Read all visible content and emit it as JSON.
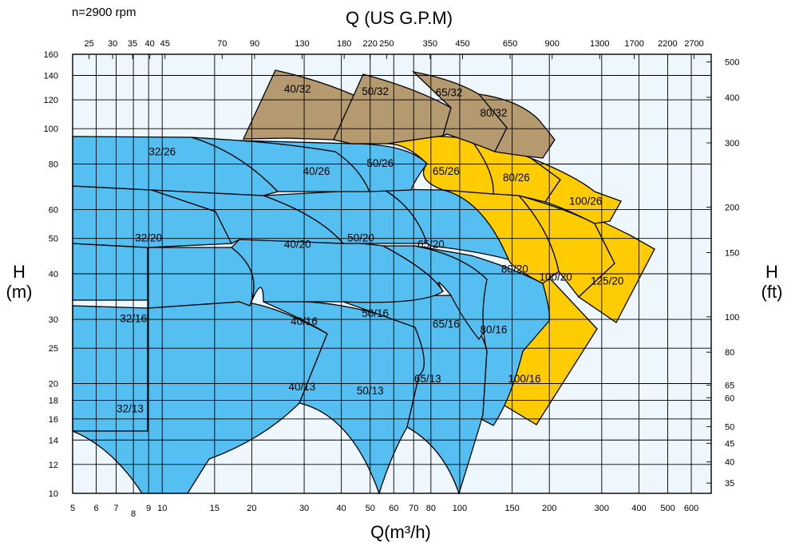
{
  "chart_data": {
    "type": "area",
    "annotation": "n=2900 rpm",
    "xlabel": "Q(m³/h)",
    "x2label": "Q (US G.P.M)",
    "ylabel": "H",
    "ylabel_unit": "(m)",
    "y2label": "H",
    "y2label_unit": "(ft)",
    "x_scale": "log",
    "y_scale": "log",
    "xlim": [
      5,
      700
    ],
    "ylim": [
      10,
      160
    ],
    "x_ticks": [
      "5",
      "6",
      "7",
      "8",
      "9",
      "10",
      "15",
      "20",
      "30",
      "40",
      "50",
      "60",
      "70",
      "80",
      "100",
      "150",
      "200",
      "300",
      "400",
      "500",
      "600"
    ],
    "x_tick_values": [
      5,
      6,
      7,
      8,
      9,
      10,
      15,
      20,
      30,
      40,
      50,
      60,
      70,
      80,
      100,
      150,
      200,
      300,
      400,
      500,
      600
    ],
    "x2_ticks": [
      "25",
      "30",
      "35",
      "40",
      "45",
      "70",
      "90",
      "130",
      "180",
      "220",
      "250",
      "350",
      "450",
      "650",
      "900",
      "1300",
      "1700",
      "2200",
      "2700"
    ],
    "x2_tick_values": [
      25,
      30,
      35,
      40,
      45,
      70,
      90,
      130,
      180,
      220,
      250,
      350,
      450,
      650,
      900,
      1300,
      1700,
      2200,
      2700
    ],
    "y_ticks": [
      "10",
      "12",
      "14",
      "16",
      "18",
      "20",
      "25",
      "30",
      "40",
      "50",
      "60",
      "80",
      "100",
      "120",
      "140",
      "160"
    ],
    "y_tick_values": [
      10,
      12,
      14,
      16,
      18,
      20,
      25,
      30,
      40,
      50,
      60,
      80,
      100,
      120,
      140,
      160
    ],
    "y2_ticks": [
      "35",
      "40",
      "45",
      "50",
      "60",
      "65",
      "80",
      "100",
      "150",
      "200",
      "300",
      "400",
      "500"
    ],
    "y2_tick_values": [
      35,
      40,
      45,
      50,
      60,
      65,
      80,
      100,
      150,
      200,
      300,
      400,
      500
    ],
    "grid": true,
    "colors": {
      "blue": "#54bff0",
      "yellow": "#fecc00",
      "brown": "#b5996f",
      "background": "#eef7fd",
      "grid": "#000000"
    },
    "series": [
      {
        "name": "32/13",
        "color": "blue",
        "label_at": [
          7.8,
          17
        ]
      },
      {
        "name": "40/13",
        "color": "blue",
        "label_at": [
          29.5,
          19.5
        ]
      },
      {
        "name": "50/13",
        "color": "blue",
        "label_at": [
          50,
          19
        ]
      },
      {
        "name": "65/13",
        "color": "blue",
        "label_at": [
          78,
          20.5
        ]
      },
      {
        "name": "100/16",
        "color": "yellow",
        "label_at": [
          165,
          20.5
        ]
      },
      {
        "name": "32/16",
        "color": "blue",
        "label_at": [
          8,
          30
        ]
      },
      {
        "name": "40/16",
        "color": "blue",
        "label_at": [
          30,
          29.5
        ]
      },
      {
        "name": "50/16",
        "color": "blue",
        "label_at": [
          52,
          31
        ]
      },
      {
        "name": "65/16",
        "color": "blue",
        "label_at": [
          90,
          29
        ]
      },
      {
        "name": "80/16",
        "color": "blue",
        "label_at": [
          130,
          28
        ]
      },
      {
        "name": "32/20",
        "color": "blue",
        "label_at": [
          9,
          50
        ]
      },
      {
        "name": "40/20",
        "color": "blue",
        "label_at": [
          28.5,
          48
        ]
      },
      {
        "name": "50/20",
        "color": "blue",
        "label_at": [
          46.5,
          50
        ]
      },
      {
        "name": "65/20",
        "color": "blue",
        "label_at": [
          80,
          48
        ]
      },
      {
        "name": "80/20",
        "color": "yellow",
        "label_at": [
          153,
          41
        ]
      },
      {
        "name": "100/20",
        "color": "yellow",
        "label_at": [
          210,
          39
        ]
      },
      {
        "name": "125/20",
        "color": "yellow",
        "label_at": [
          313,
          38
        ]
      },
      {
        "name": "32/26",
        "color": "blue",
        "label_at": [
          10,
          86
        ]
      },
      {
        "name": "40/26",
        "color": "blue",
        "label_at": [
          33,
          76
        ]
      },
      {
        "name": "50/26",
        "color": "blue",
        "label_at": [
          54,
          80
        ]
      },
      {
        "name": "65/26",
        "color": "yellow",
        "label_at": [
          90,
          76
        ]
      },
      {
        "name": "80/26",
        "color": "yellow",
        "label_at": [
          155,
          73
        ]
      },
      {
        "name": "100/26",
        "color": "yellow",
        "label_at": [
          265,
          63
        ]
      },
      {
        "name": "40/32",
        "color": "brown",
        "label_at": [
          28.5,
          128
        ]
      },
      {
        "name": "50/32",
        "color": "brown",
        "label_at": [
          52,
          126
        ]
      },
      {
        "name": "65/32",
        "color": "brown",
        "label_at": [
          92,
          125
        ]
      },
      {
        "name": "80/32",
        "color": "brown",
        "label_at": [
          130,
          110
        ]
      }
    ]
  }
}
